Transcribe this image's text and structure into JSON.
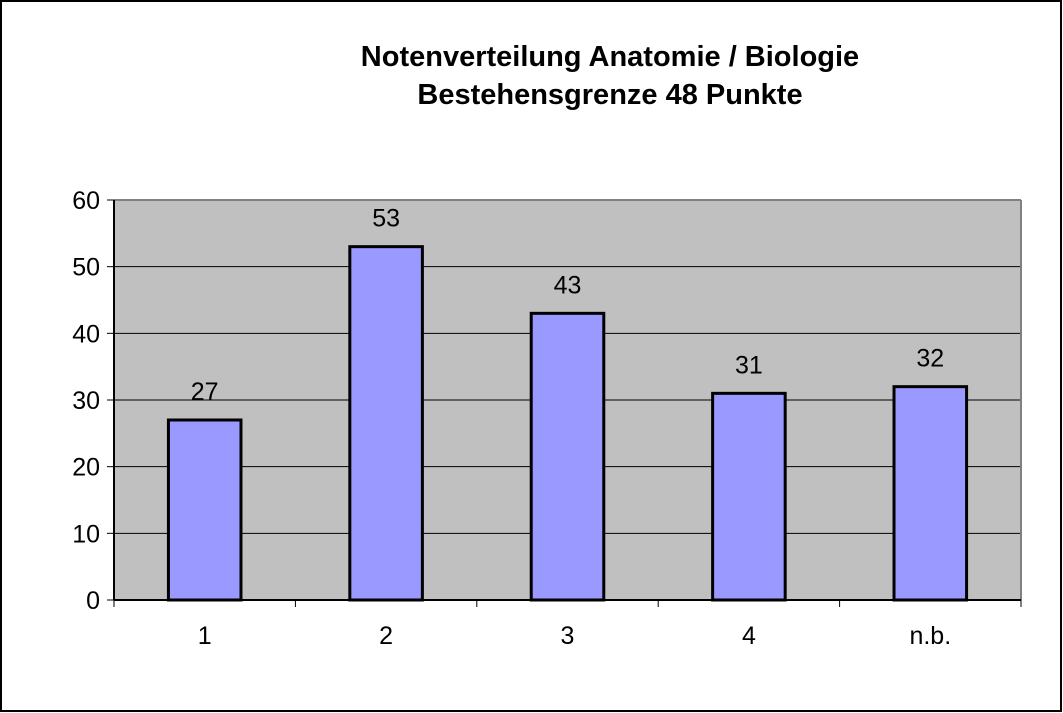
{
  "chart_data": {
    "type": "bar",
    "title": "Notenverteilung Anatomie / Biologie",
    "subtitle": "Bestehensgrenze 48 Punkte",
    "xlabel": "",
    "ylabel": "",
    "categories": [
      "1",
      "2",
      "3",
      "4",
      "n.b."
    ],
    "values": [
      27,
      53,
      43,
      31,
      32
    ],
    "ylim": [
      0,
      60
    ],
    "yticks": [
      0,
      10,
      20,
      30,
      40,
      50,
      60
    ],
    "ytick_labels": [
      "0",
      "10",
      "20",
      "30",
      "40",
      "50",
      "60"
    ],
    "data_labels": [
      "27",
      "53",
      "43",
      "31",
      "32"
    ],
    "grid": true,
    "legend": "none",
    "colors": {
      "bar_fill": "#9999ff",
      "bar_stroke": "#000000",
      "plot_background": "#c0c0c0",
      "gridline": "#000000",
      "chart_border": "#000000"
    }
  }
}
